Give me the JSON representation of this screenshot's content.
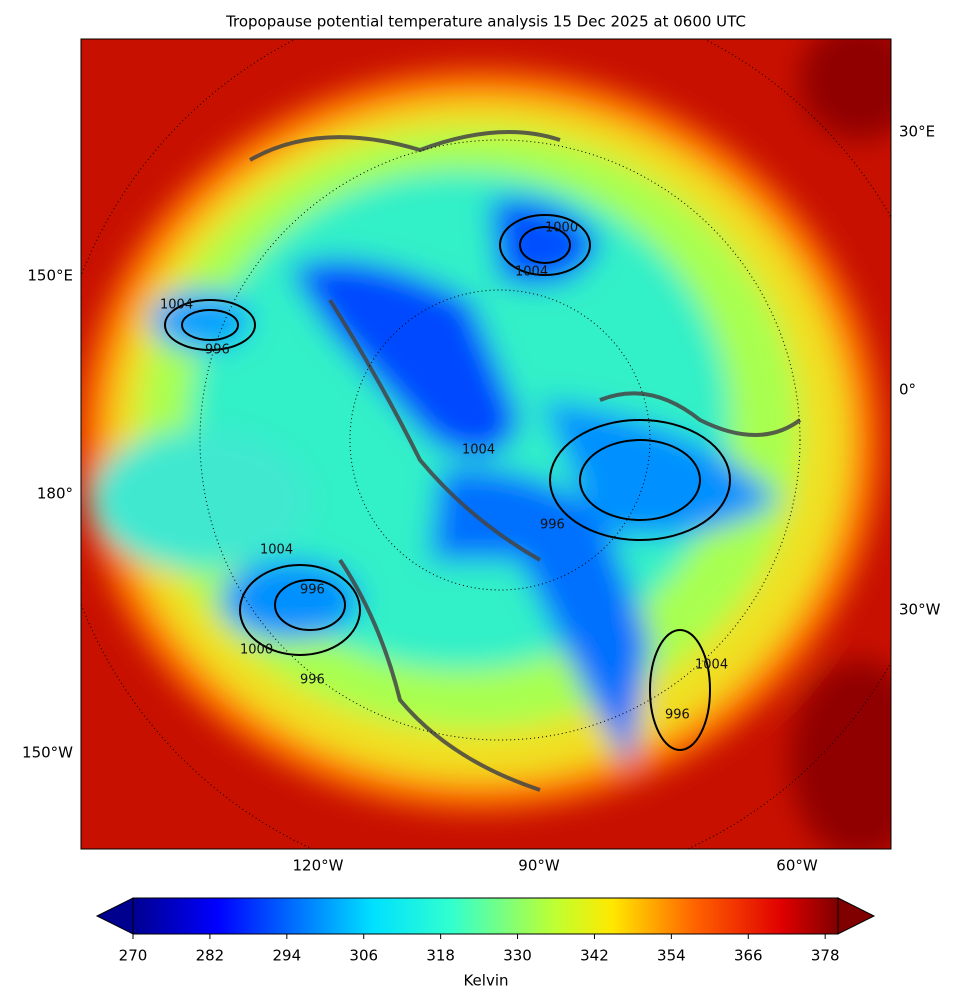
{
  "title": "Tropopause potential temperature analysis 15 Dec 2025 at 0600 UTC",
  "map": {
    "left_labels": [
      "150°E",
      "180°",
      "150°W"
    ],
    "right_labels": [
      "30°E",
      "0°",
      "30°W"
    ],
    "bottom_labels": [
      "120°W",
      "90°W",
      "60°W"
    ],
    "contour_labels": [
      "1004",
      "996",
      "1004",
      "1000",
      "996",
      "1004",
      "996",
      "1004",
      "1000",
      "996",
      "1004",
      "996"
    ]
  },
  "colorbar": {
    "label": "Kelvin",
    "range": [
      270,
      380
    ],
    "ticks": [
      270,
      282,
      294,
      306,
      318,
      330,
      342,
      354,
      366,
      378
    ]
  }
}
